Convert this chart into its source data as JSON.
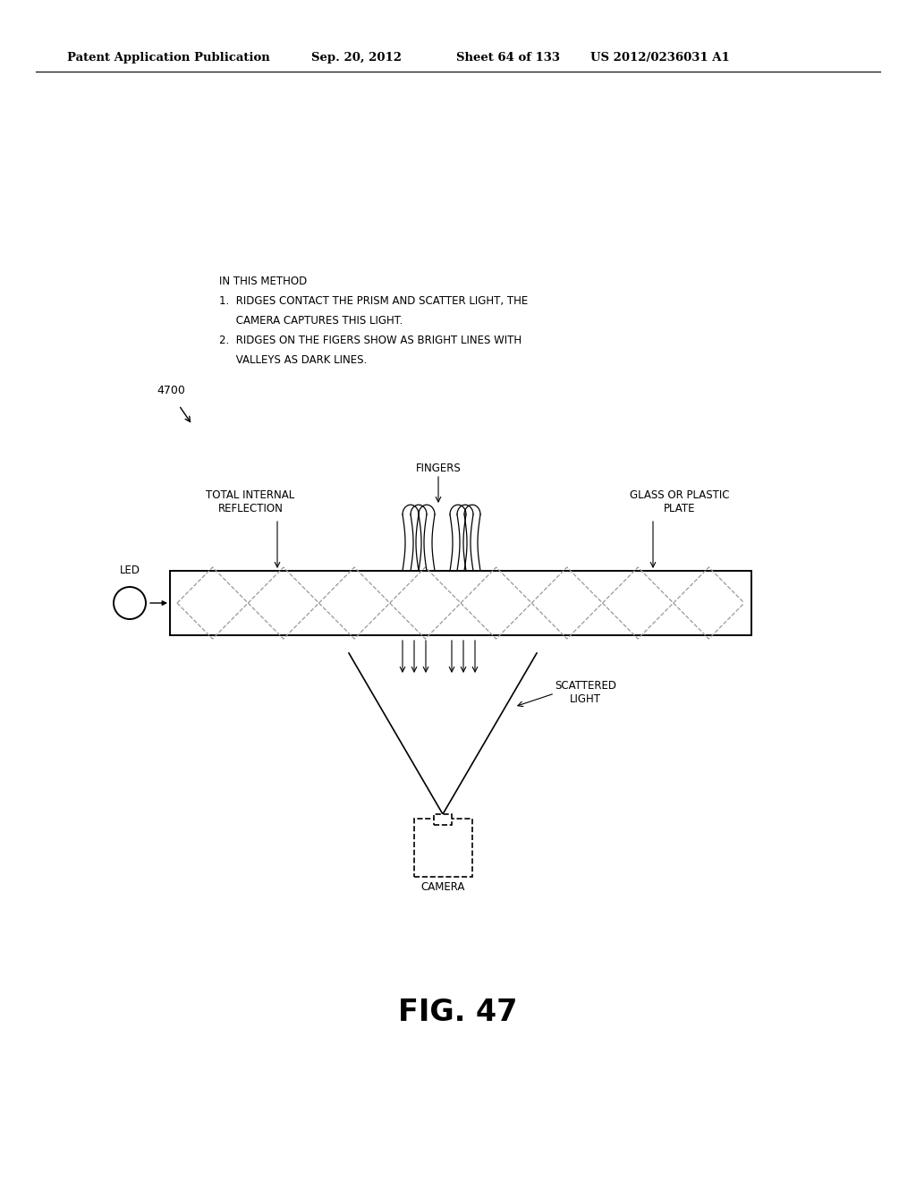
{
  "background_color": "#ffffff",
  "header_text": "Patent Application Publication",
  "header_date": "Sep. 20, 2012",
  "header_sheet": "Sheet 64 of 133",
  "header_patent": "US 2012/0236031 A1",
  "fig_label": "FIG. 47",
  "fig_number": "4700",
  "text_lines": [
    "IN THIS METHOD",
    "1.  RIDGES CONTACT THE PRISM AND SCATTER LIGHT, THE",
    "     CAMERA CAPTURES THIS LIGHT.",
    "2.  RIDGES ON THE FIGERS SHOW AS BRIGHT LINES WITH",
    "     VALLEYS AS DARK LINES."
  ],
  "label_led": "LED",
  "label_total_internal": "TOTAL INTERNAL\nREFLECTION",
  "label_fingers": "FINGERS",
  "label_glass": "GLASS OR PLASTIC\nPLATE",
  "label_scattered": "SCATTERED\nLIGHT",
  "label_camera": "CAMERA"
}
